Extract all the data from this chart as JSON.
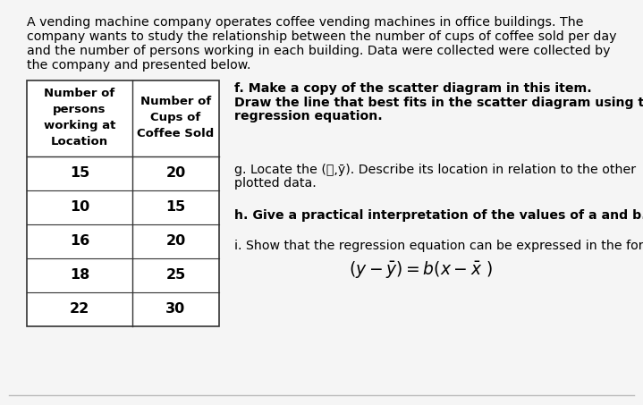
{
  "bg_color": "#f5f5f5",
  "intro_text_lines": [
    "A vending machine company operates coffee vending machines in office buildings. The",
    "company wants to study the relationship between the number of cups of coffee sold per day",
    "and the number of persons working in each building. Data were collected were collected by",
    "the company and presented below."
  ],
  "col1_header_lines": [
    "Number of",
    "persons",
    "working at",
    "Location"
  ],
  "col2_header_lines": [
    "Number of",
    "Cups of",
    "Coffee Sold"
  ],
  "table_data": [
    [
      15,
      20
    ],
    [
      10,
      15
    ],
    [
      16,
      20
    ],
    [
      18,
      25
    ],
    [
      22,
      30
    ]
  ],
  "text_f_bold": "f. Make a copy of the scatter diagram in this item.",
  "text_f_bold2": "Draw the line that best fits in the scatter diagram using the",
  "text_f_bold3": "regression equation.",
  "text_g": "g. Locate the (ᶋ,ȳ). Describe its location in relation to the other",
  "text_g2": "plotted data.",
  "text_h": "h. Give a practical interpretation of the values of a and b.",
  "text_i": "i. Show that the regression equation can be expressed in the form:",
  "font_size_intro": 10.2,
  "font_size_table_header": 9.5,
  "font_size_table_data": 11.5,
  "font_size_right": 10.2,
  "font_size_eq": 13.5
}
